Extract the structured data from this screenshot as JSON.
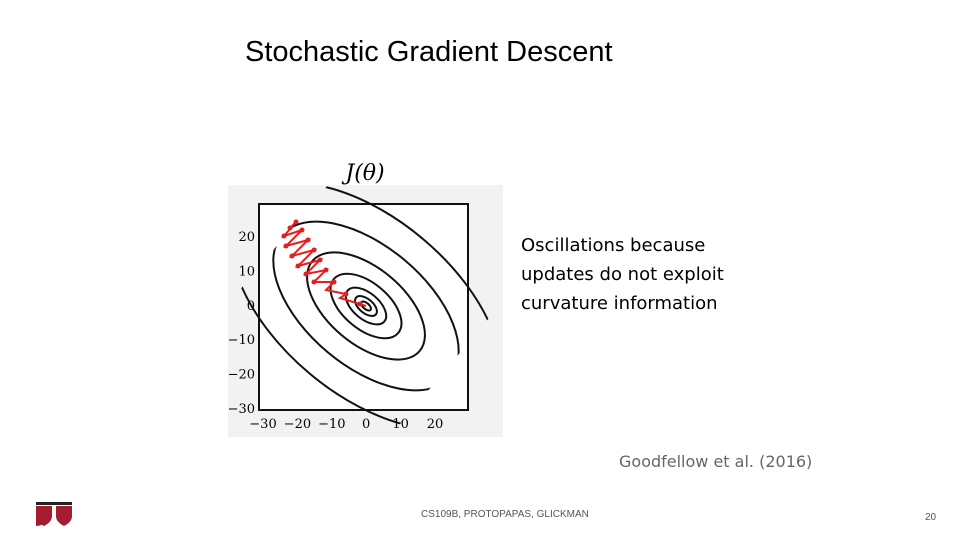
{
  "slide": {
    "title": "Stochastic Gradient Descent",
    "figure": {
      "label": "J(θ)",
      "yticks": [
        "20",
        "10",
        "0",
        "−10",
        "−20",
        "−30"
      ],
      "xticks": [
        "−30",
        "−20",
        "−10",
        "0",
        "10",
        "20"
      ]
    },
    "body": "Oscillations because updates do not exploit curvature information",
    "citation": "Goodfellow et al. (2016)",
    "footer": "CS109B, PROTOPAPAS, GLICKMAN",
    "page_number": "20"
  }
}
